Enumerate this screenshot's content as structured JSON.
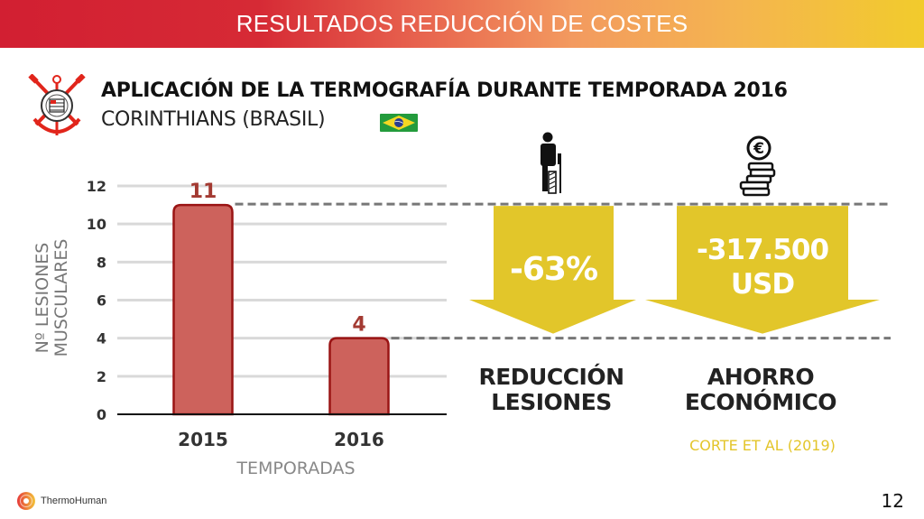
{
  "header": {
    "title": "RESULTADOS REDUCCIÓN DE COSTES"
  },
  "heading": {
    "line1": "APLICACIÓN DE LA TERMOGRAFÍA DURANTE TEMPORADA 2016",
    "line2": "CORINTHIANS (BRASIL)",
    "crest_icon": "corinthians-crest-icon",
    "flag_icon": "brazil-flag-icon"
  },
  "colors": {
    "header_start": "#d21f32",
    "header_end": "#f2cb2c",
    "bar_fill": "#cd625c",
    "bar_stroke": "#9a1414",
    "arrow_fill": "#e2c62a",
    "cite": "#e3c52a"
  },
  "chart_data": {
    "type": "bar",
    "categories": [
      "2015",
      "2016"
    ],
    "values": [
      11,
      4
    ],
    "data_labels": [
      "11",
      "4"
    ],
    "xlabel": "TEMPORADAS",
    "ylabel": "Nº LESIONES MUSCULARES",
    "ylabel_lines": [
      "Nº LESIONES",
      "MUSCULARES"
    ],
    "ylim": [
      0,
      12
    ],
    "yticks": [
      0,
      2,
      4,
      6,
      8,
      10,
      12
    ],
    "ytick_labels": [
      "0",
      "2",
      "4",
      "6",
      "8",
      "10",
      "12"
    ],
    "grid": true,
    "legend": "none"
  },
  "results": [
    {
      "value": "-63%",
      "label_lines": [
        "REDUCCIÓN",
        "LESIONES"
      ],
      "icon": "injured-person-crutch-icon"
    },
    {
      "value_lines": [
        "-317.500",
        "USD"
      ],
      "label_lines": [
        "AHORRO",
        "ECONÓMICO"
      ],
      "icon": "euro-coins-stack-icon"
    }
  ],
  "citation": "CORTE ET AL (2019)",
  "footer": {
    "logo_text": "ThermoHuman",
    "page_number": "12"
  }
}
